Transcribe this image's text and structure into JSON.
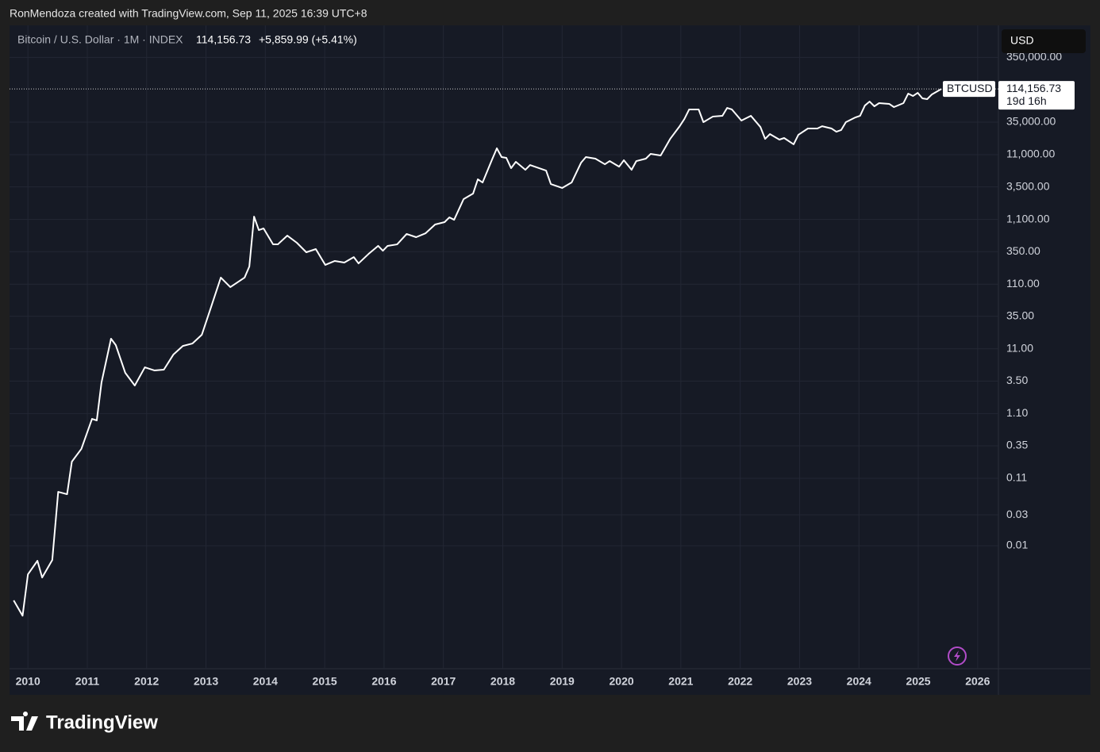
{
  "header": {
    "attribution": "RonMendoza created with TradingView.com, Sep 11, 2025 16:39 UTC+8"
  },
  "chart_data": {
    "type": "line",
    "title": "Bitcoin / U.S. Dollar · 1M · INDEX",
    "price": "114,156.73",
    "change": "+5,859.99 (+5.41%)",
    "currency": "USD",
    "countdown": "19d 16h",
    "log_scale": true,
    "grid": true,
    "xlim": [
      2009.69,
      2026.35
    ],
    "xticks": [
      2010,
      2011,
      2012,
      2013,
      2014,
      2015,
      2016,
      2017,
      2018,
      2019,
      2020,
      2021,
      2022,
      2023,
      2024,
      2025,
      2026
    ],
    "ylim": [
      0.000126,
      1094000
    ],
    "yticks": [
      {
        "value": 350000,
        "label": "350,000.00"
      },
      {
        "value": 35000,
        "label": "35,000.00"
      },
      {
        "value": 11000,
        "label": "11,000.00"
      },
      {
        "value": 3500,
        "label": "3,500.00"
      },
      {
        "value": 1100,
        "label": "1,100.00"
      },
      {
        "value": 350,
        "label": "350.00"
      },
      {
        "value": 110,
        "label": "110.00"
      },
      {
        "value": 35,
        "label": "35.00"
      },
      {
        "value": 11,
        "label": "11.00"
      },
      {
        "value": 3.5,
        "label": "3.50"
      },
      {
        "value": 1.1,
        "label": "1.10"
      },
      0.35,
      0.11,
      0.03,
      0.01
    ],
    "x": [
      2009.76,
      2009.91,
      2010.0,
      2010.16,
      2010.24,
      2010.41,
      2010.51,
      2010.66,
      2010.74,
      2010.9,
      2011.08,
      2011.16,
      2011.24,
      2011.4,
      2011.48,
      2011.64,
      2011.8,
      2011.97,
      2012.13,
      2012.29,
      2012.45,
      2012.61,
      2012.77,
      2012.93,
      2013.09,
      2013.25,
      2013.41,
      2013.65,
      2013.73,
      2013.81,
      2013.89,
      2013.97,
      2014.13,
      2014.21,
      2014.37,
      2014.53,
      2014.69,
      2014.85,
      2015.01,
      2015.17,
      2015.33,
      2015.49,
      2015.57,
      2015.74,
      2015.9,
      2015.98,
      2016.06,
      2016.22,
      2016.38,
      2016.54,
      2016.7,
      2016.86,
      2017.02,
      2017.1,
      2017.18,
      2017.34,
      2017.5,
      2017.58,
      2017.66,
      2017.82,
      2017.9,
      2017.98,
      2018.06,
      2018.14,
      2018.22,
      2018.38,
      2018.46,
      2018.73,
      2018.81,
      2019.0,
      2019.16,
      2019.32,
      2019.4,
      2019.56,
      2019.72,
      2019.8,
      2019.96,
      2020.04,
      2020.17,
      2020.25,
      2020.41,
      2020.49,
      2020.66,
      2020.82,
      2020.98,
      2021.06,
      2021.14,
      2021.3,
      2021.38,
      2021.54,
      2021.7,
      2021.78,
      2021.86,
      2022.02,
      2022.18,
      2022.34,
      2022.42,
      2022.5,
      2022.66,
      2022.74,
      2022.9,
      2022.98,
      2023.14,
      2023.3,
      2023.38,
      2023.54,
      2023.62,
      2023.7,
      2023.78,
      2023.94,
      2024.02,
      2024.1,
      2024.18,
      2024.26,
      2024.34,
      2024.51,
      2024.59,
      2024.75,
      2024.83,
      2024.91,
      2024.99,
      2025.07,
      2025.15,
      2025.23,
      2025.39
    ],
    "series": [
      {
        "name": "BTCUSD",
        "color": "#ffffff",
        "values": [
          0.00143,
          0.00083,
          0.00361,
          0.00585,
          0.00323,
          0.00601,
          0.068,
          0.0625,
          0.199,
          0.313,
          0.912,
          0.863,
          3.34,
          15.8,
          12.6,
          4.69,
          2.99,
          5.71,
          5.11,
          5.25,
          8.97,
          12.2,
          13.3,
          18.2,
          50.2,
          139,
          98.9,
          139,
          206,
          1216,
          753,
          798,
          453,
          453,
          618,
          480,
          342,
          383,
          218,
          251,
          237,
          288,
          230,
          323,
          429,
          361,
          429,
          453,
          655,
          585,
          673,
          918,
          1000,
          1183,
          1086,
          2265,
          2761,
          4581,
          4093,
          9290,
          13800,
          10100,
          9820,
          6810,
          8530,
          6430,
          7620,
          6250,
          3870,
          3365,
          4093,
          8300,
          10100,
          9550,
          7830,
          8770,
          7190,
          9040,
          6430,
          8770,
          9550,
          11300,
          10700,
          19300,
          30300,
          39200,
          55000,
          55000,
          35000,
          42700,
          43900,
          58100,
          55000,
          37000,
          43900,
          29500,
          19300,
          22900,
          18800,
          19900,
          15900,
          22300,
          27900,
          27900,
          30300,
          27900,
          24900,
          26400,
          35000,
          41400,
          43900,
          63200,
          72800,
          61500,
          68900,
          67000,
          59800,
          68900,
          96600,
          88700,
          99300,
          81500,
          79300,
          94000,
          114156.73
        ]
      }
    ]
  },
  "footer": {
    "logo": "TradingView"
  }
}
